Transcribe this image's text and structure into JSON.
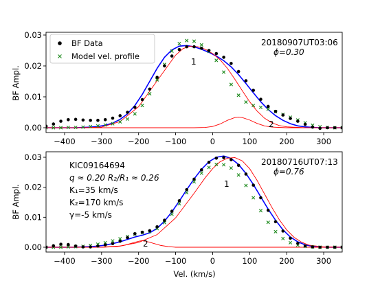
{
  "colors": {
    "data": "#000000",
    "model": "#1e8a1e",
    "fit_total": "#0000ff",
    "components": "#ff0000"
  },
  "legend": {
    "entries": [
      {
        "marker": "dot",
        "label": "BF Data"
      },
      {
        "marker": "cross",
        "label": "Model vel. profile"
      }
    ]
  },
  "chart_data": [
    {
      "type": "line",
      "panel": "top",
      "title": "",
      "xlabel": "",
      "ylabel": "BF Ampl.",
      "xlim": [
        -450,
        350
      ],
      "ylim": [
        -0.001,
        0.031
      ],
      "xticks": [
        "−400",
        "−300",
        "−200",
        "−100",
        "0",
        "100",
        "200",
        "300"
      ],
      "yticks": [
        "0.00",
        "0.01",
        "0.02",
        "0.03"
      ],
      "legend_position": "top-left",
      "annotations": {
        "date": "20180907UT03:06",
        "phase": "ϕ=0.30",
        "comp1": "1",
        "comp2": "2"
      },
      "series": [
        {
          "name": "BF Data",
          "style": "dots",
          "x": [
            -450,
            -430,
            -410,
            -390,
            -370,
            -350,
            -330,
            -310,
            -290,
            -270,
            -250,
            -230,
            -210,
            -190,
            -170,
            -150,
            -130,
            -110,
            -90,
            -70,
            -50,
            -30,
            -10,
            10,
            30,
            50,
            70,
            90,
            110,
            130,
            150,
            170,
            190,
            210,
            230,
            250,
            270,
            290,
            310,
            330,
            350
          ],
          "y": [
            0.0005,
            0.0012,
            0.0021,
            0.0026,
            0.0027,
            0.0025,
            0.0024,
            0.0024,
            0.0026,
            0.0031,
            0.0039,
            0.005,
            0.0066,
            0.0091,
            0.0125,
            0.0163,
            0.02,
            0.0232,
            0.0253,
            0.0262,
            0.0262,
            0.0257,
            0.025,
            0.024,
            0.0228,
            0.0208,
            0.0182,
            0.0152,
            0.0121,
            0.0092,
            0.0069,
            0.0053,
            0.0041,
            0.003,
            0.0021,
            0.0011,
            0.0002,
            -0.0002,
            0.0,
            0.0,
            0.0
          ]
        },
        {
          "name": "Model vel. profile",
          "style": "crosses",
          "x": [
            -450,
            -430,
            -410,
            -390,
            -370,
            -350,
            -330,
            -310,
            -290,
            -270,
            -250,
            -230,
            -210,
            -190,
            -170,
            -150,
            -130,
            -110,
            -90,
            -70,
            -50,
            -30,
            -10,
            10,
            30,
            50,
            70,
            90,
            110,
            130,
            150,
            170,
            190,
            210,
            230,
            250,
            270,
            290,
            310,
            330,
            350
          ],
          "y": [
            0.0,
            0.0,
            0.0,
            0.0001,
            0.0001,
            0.0002,
            0.0004,
            0.0006,
            0.0009,
            0.0013,
            0.0019,
            0.0028,
            0.0045,
            0.0072,
            0.011,
            0.0155,
            0.0205,
            0.0248,
            0.0272,
            0.0282,
            0.028,
            0.0268,
            0.0247,
            0.0218,
            0.018,
            0.014,
            0.0105,
            0.0083,
            0.0072,
            0.0066,
            0.006,
            0.0052,
            0.0043,
            0.0034,
            0.0025,
            0.0016,
            0.0008,
            0.0003,
            0.0001,
            0.0,
            0.0
          ]
        },
        {
          "style": "line-total",
          "x": [
            -450,
            -430,
            -410,
            -390,
            -370,
            -350,
            -330,
            -310,
            -290,
            -270,
            -250,
            -230,
            -210,
            -190,
            -170,
            -150,
            -130,
            -110,
            -90,
            -70,
            -50,
            -30,
            -10,
            10,
            30,
            50,
            70,
            90,
            110,
            130,
            150,
            170,
            190,
            210,
            230,
            250,
            270,
            290,
            310,
            330,
            350
          ],
          "y": [
            0.0,
            0.0,
            0.0,
            0.0,
            0.0,
            0.0001,
            0.0002,
            0.0004,
            0.0008,
            0.0015,
            0.0027,
            0.0045,
            0.0072,
            0.0108,
            0.015,
            0.0192,
            0.0228,
            0.0252,
            0.0264,
            0.0266,
            0.0262,
            0.0254,
            0.0244,
            0.0232,
            0.0217,
            0.0197,
            0.0172,
            0.0143,
            0.0113,
            0.0084,
            0.0059,
            0.0039,
            0.0024,
            0.0013,
            0.0006,
            0.0003,
            0.0001,
            0.0,
            0.0,
            0.0,
            0.0
          ]
        },
        {
          "style": "line-component",
          "x": [
            -450,
            -400,
            -350,
            -300,
            -250,
            -200,
            -150,
            -100,
            -80,
            -60,
            -40,
            -20,
            0,
            20,
            40,
            60,
            80,
            100,
            120,
            140,
            160,
            180,
            200,
            250,
            300,
            350
          ],
          "y": [
            0.0,
            0.0,
            0.0,
            0.0002,
            0.002,
            0.0068,
            0.0152,
            0.0235,
            0.0256,
            0.0264,
            0.0262,
            0.0254,
            0.024,
            0.022,
            0.0192,
            0.0157,
            0.012,
            0.0084,
            0.0054,
            0.0031,
            0.0016,
            0.0007,
            0.0003,
            0.0,
            0.0,
            0.0
          ]
        },
        {
          "style": "line-component",
          "x": [
            -450,
            -100,
            -50,
            -20,
            0,
            20,
            40,
            60,
            70,
            80,
            100,
            120,
            140,
            160,
            200,
            250,
            350
          ],
          "y": [
            0.0,
            0.0,
            0.0,
            0.0001,
            0.0004,
            0.0012,
            0.0024,
            0.0033,
            0.0034,
            0.0033,
            0.0025,
            0.0014,
            0.0006,
            0.0002,
            0.0,
            0.0,
            0.0
          ]
        }
      ]
    },
    {
      "type": "line",
      "panel": "bottom",
      "title": "",
      "xlabel": "Vel. (km/s)",
      "ylabel": "BF Ampl.",
      "xlim": [
        -450,
        350
      ],
      "ylim": [
        -0.001,
        0.031
      ],
      "xticks": [
        "−400",
        "−300",
        "−200",
        "−100",
        "0",
        "100",
        "200",
        "300"
      ],
      "yticks": [
        "0.00",
        "0.01",
        "0.02",
        "0.03"
      ],
      "annotations": {
        "date": "20180716UT07:13",
        "phase": "ϕ=0.76",
        "comp1": "1",
        "comp2": "2",
        "star": "KIC09164694",
        "params": [
          "q ≈ 0.20   R₂/R₁ ≈ 0.26",
          "K₁=35 km/s",
          "K₂=170 km/s",
          "γ=-5 km/s"
        ]
      },
      "series": [
        {
          "name": "BF Data",
          "style": "dots",
          "x": [
            -450,
            -430,
            -410,
            -390,
            -370,
            -350,
            -330,
            -310,
            -290,
            -270,
            -250,
            -230,
            -210,
            -190,
            -170,
            -150,
            -130,
            -110,
            -90,
            -70,
            -50,
            -30,
            -10,
            10,
            30,
            50,
            70,
            90,
            110,
            130,
            150,
            170,
            190,
            210,
            230,
            250,
            270,
            290,
            310,
            330,
            350
          ],
          "y": [
            0.0,
            0.0005,
            0.001,
            0.0009,
            0.0004,
            0.0001,
            0.0001,
            0.0004,
            0.0008,
            0.0012,
            0.002,
            0.0032,
            0.0045,
            0.005,
            0.0055,
            0.0068,
            0.009,
            0.012,
            0.0155,
            0.0192,
            0.0227,
            0.0258,
            0.0283,
            0.0297,
            0.0299,
            0.0292,
            0.0273,
            0.0244,
            0.0207,
            0.0165,
            0.0123,
            0.0085,
            0.0054,
            0.003,
            0.0013,
            0.0004,
            0.0001,
            0.0,
            0.0,
            0.0,
            0.0
          ]
        },
        {
          "name": "Model vel. profile",
          "style": "crosses",
          "x": [
            -450,
            -430,
            -410,
            -390,
            -370,
            -350,
            -330,
            -310,
            -290,
            -270,
            -250,
            -230,
            -210,
            -190,
            -170,
            -150,
            -130,
            -110,
            -90,
            -70,
            -50,
            -30,
            -10,
            10,
            30,
            50,
            70,
            90,
            110,
            130,
            150,
            170,
            190,
            210,
            230,
            250,
            270,
            290,
            310,
            330,
            350
          ],
          "y": [
            0.0,
            0.0,
            0.0,
            0.0001,
            0.0002,
            0.0003,
            0.0006,
            0.001,
            0.0015,
            0.0021,
            0.0028,
            0.0036,
            0.0043,
            0.0048,
            0.0052,
            0.0062,
            0.0082,
            0.011,
            0.0145,
            0.0182,
            0.0218,
            0.0247,
            0.0266,
            0.0276,
            0.0275,
            0.0264,
            0.0241,
            0.0206,
            0.0165,
            0.0122,
            0.0083,
            0.0052,
            0.0029,
            0.0015,
            0.0007,
            0.0003,
            0.0001,
            0.0,
            0.0,
            0.0,
            0.0
          ]
        },
        {
          "style": "line-total",
          "x": [
            -450,
            -430,
            -410,
            -390,
            -370,
            -350,
            -330,
            -310,
            -290,
            -270,
            -250,
            -230,
            -210,
            -190,
            -170,
            -150,
            -130,
            -110,
            -90,
            -70,
            -50,
            -30,
            -10,
            10,
            30,
            50,
            70,
            90,
            110,
            130,
            150,
            170,
            190,
            210,
            230,
            250,
            270,
            290,
            310,
            330,
            350
          ],
          "y": [
            0.0,
            0.0,
            0.0,
            0.0,
            0.0,
            0.0001,
            0.0002,
            0.0004,
            0.0007,
            0.0012,
            0.0018,
            0.0026,
            0.0034,
            0.004,
            0.0048,
            0.0063,
            0.0087,
            0.0118,
            0.0154,
            0.0192,
            0.0228,
            0.026,
            0.0285,
            0.03,
            0.0304,
            0.0296,
            0.0276,
            0.0246,
            0.0209,
            0.0168,
            0.0127,
            0.009,
            0.0058,
            0.0034,
            0.0018,
            0.0008,
            0.0003,
            0.0001,
            0.0,
            0.0,
            0.0
          ]
        },
        {
          "style": "line-component",
          "x": [
            -450,
            -300,
            -250,
            -200,
            -150,
            -100,
            -50,
            -20,
            0,
            20,
            40,
            60,
            80,
            100,
            120,
            140,
            160,
            180,
            200,
            220,
            240,
            260,
            300,
            350
          ],
          "y": [
            0.0,
            0.0,
            0.0004,
            0.0016,
            0.0042,
            0.0098,
            0.018,
            0.0232,
            0.0262,
            0.0285,
            0.0297,
            0.0299,
            0.0288,
            0.0262,
            0.0223,
            0.0178,
            0.0133,
            0.0092,
            0.0058,
            0.0033,
            0.0017,
            0.0007,
            0.0001,
            0.0
          ]
        },
        {
          "style": "line-component",
          "x": [
            -450,
            -300,
            -260,
            -240,
            -220,
            -200,
            -190,
            -180,
            -160,
            -140,
            -120,
            -100,
            -60,
            350
          ],
          "y": [
            0.0,
            0.0,
            0.0002,
            0.0006,
            0.0013,
            0.002,
            0.0022,
            0.002,
            0.0013,
            0.0006,
            0.0002,
            0.0,
            0.0,
            0.0
          ]
        }
      ]
    }
  ]
}
